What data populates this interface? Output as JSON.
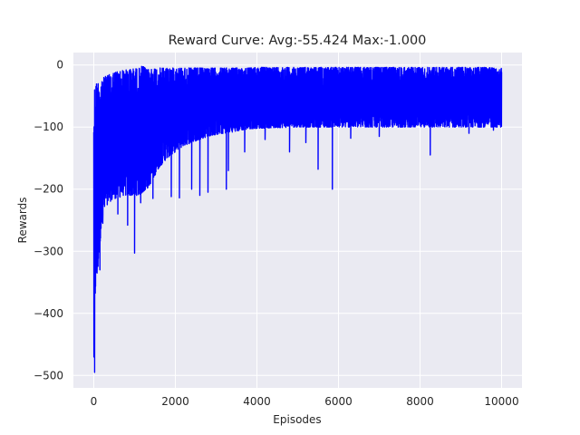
{
  "chart_data": {
    "type": "line",
    "title": "Reward Curve: Avg:-55.424 Max:-1.000",
    "xlabel": "Episodes",
    "ylabel": "Rewards",
    "xlim": [
      -500,
      10500
    ],
    "ylim": [
      -520,
      20
    ],
    "grid": true,
    "line_color": "#0000ff",
    "background_color": "#eaeaf2",
    "grid_color": "#ffffff",
    "x_ticks": [
      0,
      2000,
      4000,
      6000,
      8000,
      10000
    ],
    "x_tick_labels": [
      "0",
      "2000",
      "4000",
      "6000",
      "8000",
      "10000"
    ],
    "y_ticks": [
      0,
      -100,
      -200,
      -300,
      -400,
      -500
    ],
    "y_tick_labels": [
      "0",
      "−100",
      "−200",
      "−300",
      "−400",
      "−500"
    ],
    "episodes": 10000,
    "avg": -55.424,
    "max": -1.0,
    "series": [
      {
        "envelope": {
          "x": [
            0,
            50,
            100,
            150,
            200,
            300,
            400,
            500,
            600,
            700,
            800,
            900,
            1000,
            1100,
            1200,
            1300,
            1400,
            1600,
            1800,
            2000,
            2200,
            2400,
            2600,
            2800,
            3000,
            3200,
            3400,
            3600,
            3800,
            4000,
            4500,
            5000,
            5500,
            6000,
            6500,
            7000,
            7500,
            8000,
            8500,
            9000,
            9500,
            10000
          ],
          "upper": [
            -40,
            -30,
            -28,
            -25,
            -22,
            -18,
            -15,
            -12,
            -10,
            -9,
            -8,
            -7,
            -6,
            -6,
            -1,
            -8,
            -6,
            -5,
            -5,
            -5,
            -5,
            -5,
            -5,
            -5,
            -5,
            -5,
            -5,
            -5,
            -5,
            -4,
            -4,
            -4,
            -4,
            -4,
            -4,
            -4,
            -4,
            -4,
            -4,
            -4,
            -4,
            -4
          ],
          "lower": [
            -495,
            -340,
            -330,
            -290,
            -250,
            -225,
            -220,
            -215,
            -215,
            -210,
            -210,
            -210,
            -210,
            -210,
            -205,
            -200,
            -190,
            -165,
            -150,
            -140,
            -130,
            -125,
            -120,
            -115,
            -112,
            -110,
            -108,
            -105,
            -103,
            -102,
            -101,
            -100,
            -100,
            -100,
            -100,
            -100,
            -100,
            -100,
            -100,
            -100,
            -100,
            -100
          ]
        },
        "spikes": [
          {
            "x": 20,
            "y": -495
          },
          {
            "x": 80,
            "y": -335
          },
          {
            "x": 150,
            "y": -330
          },
          {
            "x": 220,
            "y": -255
          },
          {
            "x": 330,
            "y": -225
          },
          {
            "x": 590,
            "y": -240
          },
          {
            "x": 830,
            "y": -258
          },
          {
            "x": 1000,
            "y": -303
          },
          {
            "x": 1150,
            "y": -222
          },
          {
            "x": 1450,
            "y": -215
          },
          {
            "x": 1900,
            "y": -212
          },
          {
            "x": 2100,
            "y": -214
          },
          {
            "x": 2400,
            "y": -200
          },
          {
            "x": 2600,
            "y": -210
          },
          {
            "x": 2800,
            "y": -205
          },
          {
            "x": 3250,
            "y": -200
          },
          {
            "x": 3300,
            "y": -170
          },
          {
            "x": 3700,
            "y": -140
          },
          {
            "x": 4200,
            "y": -120
          },
          {
            "x": 4800,
            "y": -140
          },
          {
            "x": 5200,
            "y": -125
          },
          {
            "x": 5500,
            "y": -168
          },
          {
            "x": 5850,
            "y": -200
          },
          {
            "x": 6300,
            "y": -118
          },
          {
            "x": 7000,
            "y": -115
          },
          {
            "x": 8250,
            "y": -145
          },
          {
            "x": 9200,
            "y": -110
          },
          {
            "x": 9800,
            "y": -105
          }
        ]
      }
    ]
  }
}
